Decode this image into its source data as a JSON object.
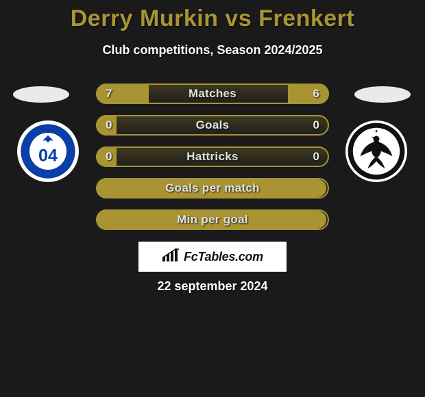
{
  "title": "Derry Murkin vs Frenkert",
  "subtitle": "Club competitions, Season 2024/2025",
  "rows": [
    {
      "label": "Matches",
      "left": "7",
      "right": "6",
      "left_pct": 23,
      "right_pct": 18
    },
    {
      "label": "Goals",
      "left": "0",
      "right": "0",
      "left_pct": 9,
      "right_pct": 0
    },
    {
      "label": "Hattricks",
      "left": "0",
      "right": "0",
      "left_pct": 9,
      "right_pct": 0
    },
    {
      "label": "Goals per match",
      "left": "",
      "right": "",
      "left_pct": 100,
      "right_pct": 0
    },
    {
      "label": "Min per goal",
      "left": "",
      "right": "",
      "left_pct": 100,
      "right_pct": 0
    }
  ],
  "site_label": "FcTables.com",
  "date_label": "22 september 2024",
  "colors": {
    "accent": "#a89433",
    "bg": "#1a1a1a",
    "white": "#ffffff",
    "badge_border": "#ffffff"
  },
  "crest_left": {
    "outer_bg": "#ffffff",
    "ring": "#0a3fa8",
    "inner": "#ffffff",
    "text": "04"
  },
  "crest_right": {
    "outer_bg": "#ffffff",
    "eagle": "#111111"
  }
}
